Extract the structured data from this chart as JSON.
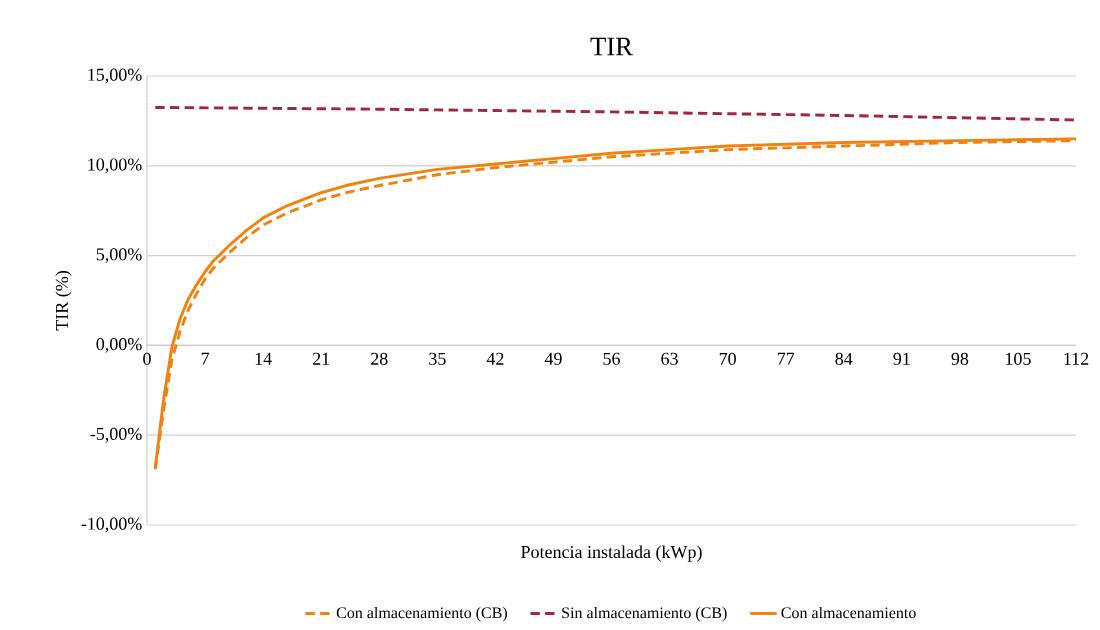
{
  "chart_data": {
    "type": "line",
    "title": "TIR",
    "xlabel": "Potencia instalada (kWp)",
    "ylabel": "TIR (%)",
    "xlim": [
      0,
      112
    ],
    "xticks": [
      0,
      7,
      14,
      21,
      28,
      35,
      42,
      49,
      56,
      63,
      70,
      77,
      84,
      91,
      98,
      105,
      112
    ],
    "ylim": [
      -10,
      15
    ],
    "yticks": [
      {
        "value": -10,
        "label": "-10,00%"
      },
      {
        "value": -5,
        "label": "-5,00%"
      },
      {
        "value": 0,
        "label": "0,00%"
      },
      {
        "value": 5,
        "label": "5,00%"
      },
      {
        "value": 10,
        "label": "10,00%"
      },
      {
        "value": 15,
        "label": "15,00%"
      }
    ],
    "grid": "y",
    "legend": "bottom",
    "marker": "none",
    "series": [
      {
        "name": "Con almacenamiento (CB)",
        "color": "#f0820f",
        "line_style": "dashed",
        "x": [
          1,
          2,
          3,
          4,
          5,
          6,
          7,
          8,
          10,
          12,
          14,
          17,
          21,
          24,
          28,
          35,
          42,
          49,
          56,
          63,
          70,
          84,
          98,
          112
        ],
        "values": [
          -6.9,
          -3.6,
          -0.8,
          0.8,
          2.0,
          2.9,
          3.7,
          4.3,
          5.2,
          6.0,
          6.7,
          7.4,
          8.1,
          8.5,
          8.9,
          9.5,
          9.9,
          10.2,
          10.5,
          10.7,
          10.9,
          11.1,
          11.3,
          11.4
        ]
      },
      {
        "name": "Sin almacenamiento (CB)",
        "color": "#a0283a",
        "line_style": "dashed",
        "x": [
          1,
          28,
          56,
          84,
          112
        ],
        "values": [
          13.25,
          13.15,
          13.0,
          12.8,
          12.55
        ]
      },
      {
        "name": "Con almacenamiento",
        "color": "#f0820f",
        "line_style": "solid",
        "x": [
          1,
          2,
          3,
          4,
          5,
          6,
          7,
          8,
          10,
          12,
          14,
          17,
          21,
          24,
          28,
          35,
          42,
          49,
          56,
          63,
          70,
          84,
          98,
          112
        ],
        "values": [
          -6.8,
          -3.0,
          -0.1,
          1.5,
          2.6,
          3.4,
          4.1,
          4.7,
          5.6,
          6.4,
          7.1,
          7.8,
          8.5,
          8.9,
          9.3,
          9.8,
          10.1,
          10.4,
          10.7,
          10.9,
          11.1,
          11.3,
          11.4,
          11.5
        ]
      }
    ]
  }
}
